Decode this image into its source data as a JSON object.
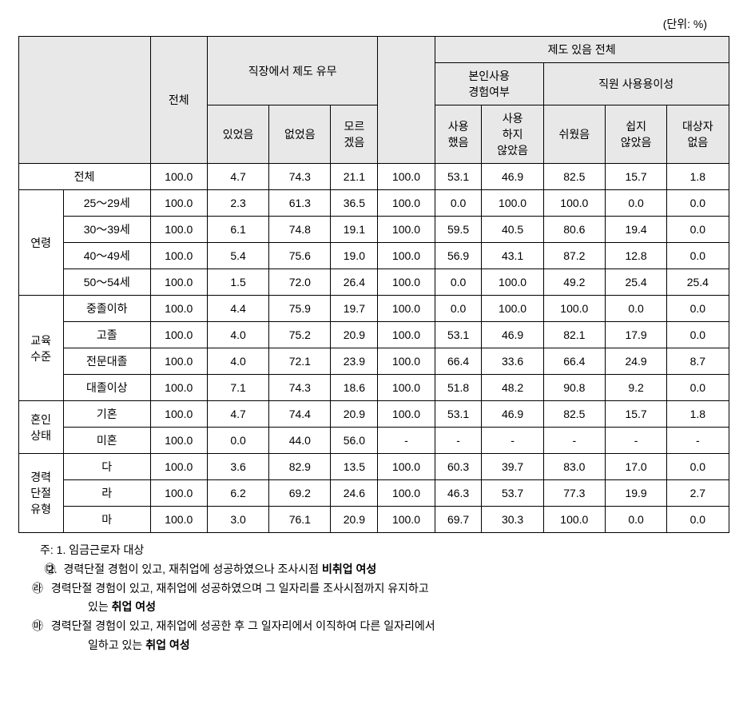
{
  "unit_label": "(단위: %)",
  "headers": {
    "total": "전체",
    "workplace_system": "직장에서 제도 유무",
    "system_yes": "있었음",
    "system_no": "없었음",
    "system_unknown": "모르\n겠음",
    "has_system_total": "제도 있음 전체",
    "self_use_exp": "본인사용\n경험여부",
    "used": "사용\n했음",
    "not_used": "사용\n하지\n않았음",
    "employee_ease": "직원 사용용이성",
    "easy": "쉬웠음",
    "not_easy": "쉽지\n않았음",
    "no_target": "대상자\n없음"
  },
  "row_groups": [
    {
      "label": "전체",
      "sublabels": [
        ""
      ],
      "spanned": false
    },
    {
      "label": "연령",
      "sublabels": [
        "25～29세",
        "30～39세",
        "40～49세",
        "50～54세"
      ],
      "spanned": true
    },
    {
      "label": "교육\n수준",
      "sublabels": [
        "중졸이하",
        "고졸",
        "전문대졸",
        "대졸이상"
      ],
      "spanned": true
    },
    {
      "label": "혼인\n상태",
      "sublabels": [
        "기혼",
        "미혼"
      ],
      "spanned": true
    },
    {
      "label": "경력\n단절\n유형",
      "sublabels": [
        "다",
        "라",
        "마"
      ],
      "spanned": true
    }
  ],
  "rows": [
    [
      "100.0",
      "4.7",
      "74.3",
      "21.1",
      "100.0",
      "53.1",
      "46.9",
      "82.5",
      "15.7",
      "1.8"
    ],
    [
      "100.0",
      "2.3",
      "61.3",
      "36.5",
      "100.0",
      "0.0",
      "100.0",
      "100.0",
      "0.0",
      "0.0"
    ],
    [
      "100.0",
      "6.1",
      "74.8",
      "19.1",
      "100.0",
      "59.5",
      "40.5",
      "80.6",
      "19.4",
      "0.0"
    ],
    [
      "100.0",
      "5.4",
      "75.6",
      "19.0",
      "100.0",
      "56.9",
      "43.1",
      "87.2",
      "12.8",
      "0.0"
    ],
    [
      "100.0",
      "1.5",
      "72.0",
      "26.4",
      "100.0",
      "0.0",
      "100.0",
      "49.2",
      "25.4",
      "25.4"
    ],
    [
      "100.0",
      "4.4",
      "75.9",
      "19.7",
      "100.0",
      "0.0",
      "100.0",
      "100.0",
      "0.0",
      "0.0"
    ],
    [
      "100.0",
      "4.0",
      "75.2",
      "20.9",
      "100.0",
      "53.1",
      "46.9",
      "82.1",
      "17.9",
      "0.0"
    ],
    [
      "100.0",
      "4.0",
      "72.1",
      "23.9",
      "100.0",
      "66.4",
      "33.6",
      "66.4",
      "24.9",
      "8.7"
    ],
    [
      "100.0",
      "7.1",
      "74.3",
      "18.6",
      "100.0",
      "51.8",
      "48.2",
      "90.8",
      "9.2",
      "0.0"
    ],
    [
      "100.0",
      "4.7",
      "74.4",
      "20.9",
      "100.0",
      "53.1",
      "46.9",
      "82.5",
      "15.7",
      "1.8"
    ],
    [
      "100.0",
      "0.0",
      "44.0",
      "56.0",
      "-",
      "-",
      "-",
      "-",
      "-",
      "-"
    ],
    [
      "100.0",
      "3.6",
      "82.9",
      "13.5",
      "100.0",
      "60.3",
      "39.7",
      "83.0",
      "17.0",
      "0.0"
    ],
    [
      "100.0",
      "6.2",
      "69.2",
      "24.6",
      "100.0",
      "46.3",
      "53.7",
      "77.3",
      "19.9",
      "2.7"
    ],
    [
      "100.0",
      "3.0",
      "76.1",
      "20.9",
      "100.0",
      "69.7",
      "30.3",
      "100.0",
      "0.0",
      "0.0"
    ]
  ],
  "notes": {
    "prefix": "주: ",
    "note1": "1. 임금근로자 대상",
    "note2_prefix": "2. ",
    "note2_da_sym": "㉰",
    "note2_da": " 경력단절 경험이 있고, 재취업에 성공하였으나 조사시점 ",
    "note2_da_bold": "비취업 여성",
    "note2_ra_sym": "㉱",
    "note2_ra": " 경력단절 경험이 있고, 재취업에 성공하였으며 그 일자리를 조사시점까지 유지하고",
    "note2_ra_cont": "있는 ",
    "note2_ra_bold": "취업 여성",
    "note2_ma_sym": "㉲",
    "note2_ma": " 경력단절 경험이 있고, 재취업에 성공한 후 그 일자리에서 이직하여 다른 일자리에서",
    "note2_ma_cont": "일하고 있는 ",
    "note2_ma_bold": "취업 여성"
  }
}
